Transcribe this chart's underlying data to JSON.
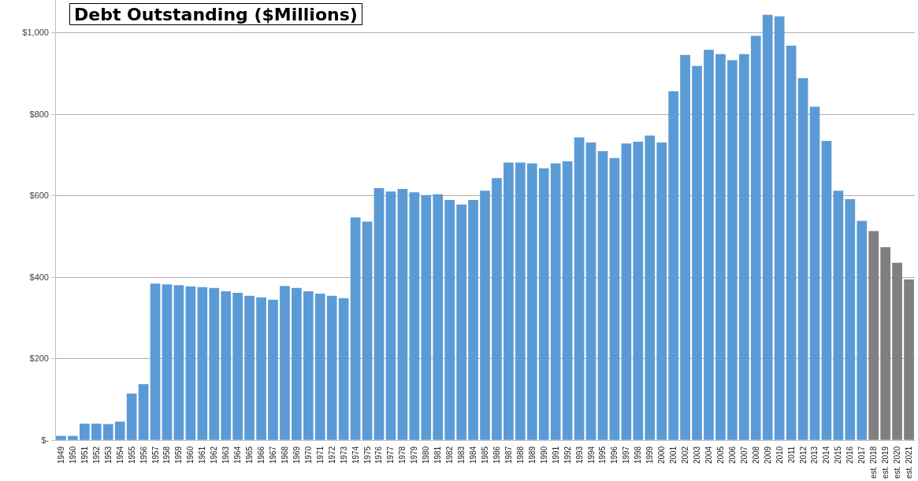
{
  "chart_data": {
    "type": "bar",
    "title": "Debt Outstanding ($Millions)",
    "categories": [
      "1949",
      "1950",
      "1951",
      "1952",
      "1953",
      "1954",
      "1955",
      "1956",
      "1957",
      "1958",
      "1959",
      "1960",
      "1961",
      "1962",
      "1963",
      "1964",
      "1965",
      "1966",
      "1967",
      "1968",
      "1969",
      "1970",
      "1971",
      "1972",
      "1973",
      "1974",
      "1975",
      "1976",
      "1977",
      "1978",
      "1979",
      "1980",
      "1981",
      "1982",
      "1983",
      "1984",
      "1985",
      "1986",
      "1987",
      "1988",
      "1989",
      "1990",
      "1991",
      "1992",
      "1993",
      "1994",
      "1995",
      "1996",
      "1997",
      "1998",
      "1999",
      "2000",
      "2001",
      "2002",
      "2003",
      "2004",
      "2005",
      "2006",
      "2007",
      "2008",
      "2009",
      "2010",
      "2011",
      "2012",
      "2013",
      "2014",
      "2015",
      "2016",
      "2017",
      "est. 2018",
      "est. 2019",
      "est. 2020",
      "est. 2021"
    ],
    "values": [
      10,
      10,
      40,
      40,
      39,
      45,
      114,
      137,
      384,
      382,
      380,
      377,
      375,
      373,
      365,
      361,
      354,
      350,
      344,
      378,
      373,
      365,
      359,
      354,
      348,
      546,
      536,
      618,
      610,
      616,
      608,
      601,
      603,
      589,
      578,
      589,
      612,
      643,
      681,
      681,
      679,
      667,
      679,
      684,
      743,
      730,
      709,
      692,
      728,
      732,
      747,
      730,
      856,
      945,
      918,
      958,
      947,
      932,
      947,
      992,
      1044,
      1040,
      968,
      888,
      818,
      734,
      612,
      591,
      538,
      513,
      473,
      435,
      394
    ],
    "colors": [
      "#5b9bd5",
      "#5b9bd5",
      "#5b9bd5",
      "#5b9bd5",
      "#5b9bd5",
      "#5b9bd5",
      "#5b9bd5",
      "#5b9bd5",
      "#5b9bd5",
      "#5b9bd5",
      "#5b9bd5",
      "#5b9bd5",
      "#5b9bd5",
      "#5b9bd5",
      "#5b9bd5",
      "#5b9bd5",
      "#5b9bd5",
      "#5b9bd5",
      "#5b9bd5",
      "#5b9bd5",
      "#5b9bd5",
      "#5b9bd5",
      "#5b9bd5",
      "#5b9bd5",
      "#5b9bd5",
      "#5b9bd5",
      "#5b9bd5",
      "#5b9bd5",
      "#5b9bd5",
      "#5b9bd5",
      "#5b9bd5",
      "#5b9bd5",
      "#5b9bd5",
      "#5b9bd5",
      "#5b9bd5",
      "#5b9bd5",
      "#5b9bd5",
      "#5b9bd5",
      "#5b9bd5",
      "#5b9bd5",
      "#5b9bd5",
      "#5b9bd5",
      "#5b9bd5",
      "#5b9bd5",
      "#5b9bd5",
      "#5b9bd5",
      "#5b9bd5",
      "#5b9bd5",
      "#5b9bd5",
      "#5b9bd5",
      "#5b9bd5",
      "#5b9bd5",
      "#5b9bd5",
      "#5b9bd5",
      "#5b9bd5",
      "#5b9bd5",
      "#5b9bd5",
      "#5b9bd5",
      "#5b9bd5",
      "#5b9bd5",
      "#5b9bd5",
      "#5b9bd5",
      "#5b9bd5",
      "#5b9bd5",
      "#5b9bd5",
      "#5b9bd5",
      "#5b9bd5",
      "#5b9bd5",
      "#5b9bd5",
      "#808080",
      "#808080",
      "#808080",
      "#808080"
    ],
    "ylim": [
      0,
      1080
    ],
    "yticks": [
      {
        "value": 0,
        "label": "$-"
      },
      {
        "value": 200,
        "label": "$200"
      },
      {
        "value": 400,
        "label": "$400"
      },
      {
        "value": 600,
        "label": "$600"
      },
      {
        "value": 800,
        "label": "$800"
      },
      {
        "value": 1000,
        "label": "$1,000"
      }
    ],
    "grid": "y"
  }
}
